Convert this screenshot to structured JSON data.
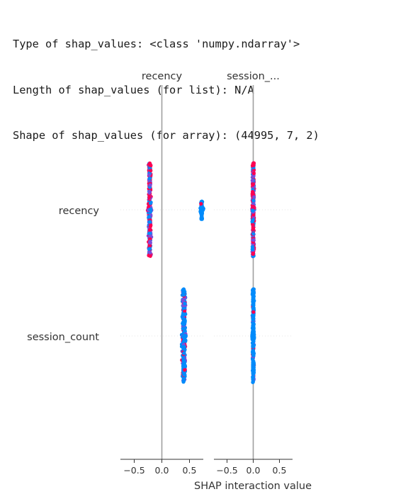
{
  "console_output": {
    "lines": [
      "Type of shap_values: <class 'numpy.ndarray'>",
      "Length of shap_values (for list): N/A",
      "Shape of shap_values (for array): (44995, 7, 2)"
    ]
  },
  "colors": {
    "high_feature_value": "#ff0051",
    "low_feature_value": "#008bfb",
    "mid_feature_value": "#7b4fd9",
    "zero_line": "#a0a0a0",
    "row_guide": "#e6e6e6",
    "text": "#333333"
  },
  "chart_data": {
    "type": "scatter",
    "subtype": "shap-interaction-beeswarm-matrix",
    "xlabel": "SHAP interaction value",
    "features": [
      "recency",
      "session_count"
    ],
    "panels": [
      {
        "title": "recency",
        "xlim": [
          -0.75,
          0.75
        ],
        "xticks": [
          -0.5,
          0.0,
          0.5
        ],
        "xtick_labels": [
          "−0.5",
          "0.0",
          "0.5"
        ],
        "rows": [
          {
            "feature": "recency",
            "groups": [
              {
                "center": -0.22,
                "spread": 0.04,
                "ymin": -1.0,
                "ymax": 1.0,
                "dense_half_width": 0.06,
                "tint": "mixed"
              },
              {
                "center": 0.72,
                "spread": 0.02,
                "ymin": -0.2,
                "ymax": 0.2,
                "dense_half_width": 0.04,
                "tint": "low"
              }
            ]
          },
          {
            "feature": "session_count",
            "groups": [
              {
                "center": 0.4,
                "spread": 0.05,
                "ymin": -1.0,
                "ymax": 1.0,
                "dense_half_width": 0.05,
                "tint": "low-dominant"
              }
            ]
          }
        ]
      },
      {
        "title": "session_...",
        "xlim": [
          -0.75,
          0.75
        ],
        "xticks": [
          -0.5,
          0.0,
          0.5
        ],
        "xtick_labels": [
          "−0.5",
          "0.0",
          "0.5"
        ],
        "rows": [
          {
            "feature": "recency",
            "groups": [
              {
                "center": 0.0,
                "spread": 0.03,
                "ymin": -1.0,
                "ymax": 1.0,
                "dense_half_width": 0.03,
                "tint": "mixed"
              }
            ]
          },
          {
            "feature": "session_count",
            "groups": [
              {
                "center": 0.0,
                "spread": 0.025,
                "ymin": -1.0,
                "ymax": 1.0,
                "dense_half_width": 0.03,
                "tint": "low"
              }
            ]
          }
        ]
      }
    ],
    "grid": false,
    "legend": "none"
  }
}
